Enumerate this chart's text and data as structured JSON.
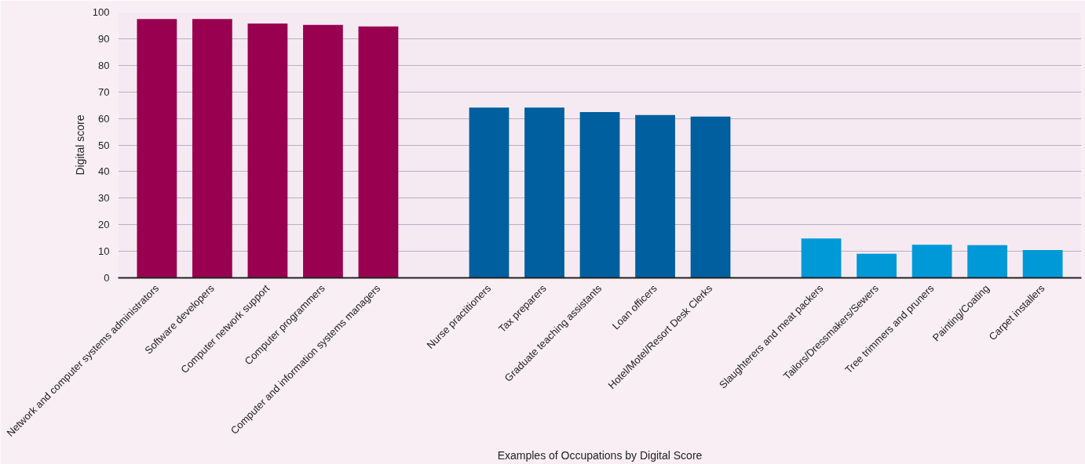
{
  "chart_data": {
    "type": "bar",
    "xlabel": "Examples of Occupations by Digital Score",
    "ylabel": "Digital score",
    "categories": [
      "Network and computer systems administrators",
      "Software developers",
      "Computer network support",
      "Computer programmers",
      "Computer and information systems managers",
      null,
      "Nurse practitioners",
      "Tax preparers",
      "Graduate teaching assistants",
      "Loan officers",
      "Hotel/Motel/Resort Desk Clerks",
      null,
      "Slaughterers and meat packers",
      "Tailors/Dressmakers/Sewers",
      "Tree trimmers and pruners",
      "Painting/Coating",
      "Carpet installers"
    ],
    "values": [
      97.4,
      97.4,
      95.7,
      95.2,
      94.6,
      null,
      64.1,
      64.1,
      62.4,
      61.3,
      60.7,
      null,
      14.8,
      9.1,
      12.5,
      12.3,
      10.5
    ],
    "colors": [
      "#990050",
      "#990050",
      "#990050",
      "#990050",
      "#990050",
      null,
      "#005f9e",
      "#005f9e",
      "#005f9e",
      "#005f9e",
      "#005f9e",
      null,
      "#0099d8",
      "#0099d8",
      "#0099d8",
      "#0099d8",
      "#0099d8"
    ],
    "ylim": [
      0,
      100
    ],
    "yticks": [
      0,
      10,
      20,
      30,
      40,
      50,
      60,
      70,
      80,
      90,
      100
    ],
    "grid": "y"
  }
}
